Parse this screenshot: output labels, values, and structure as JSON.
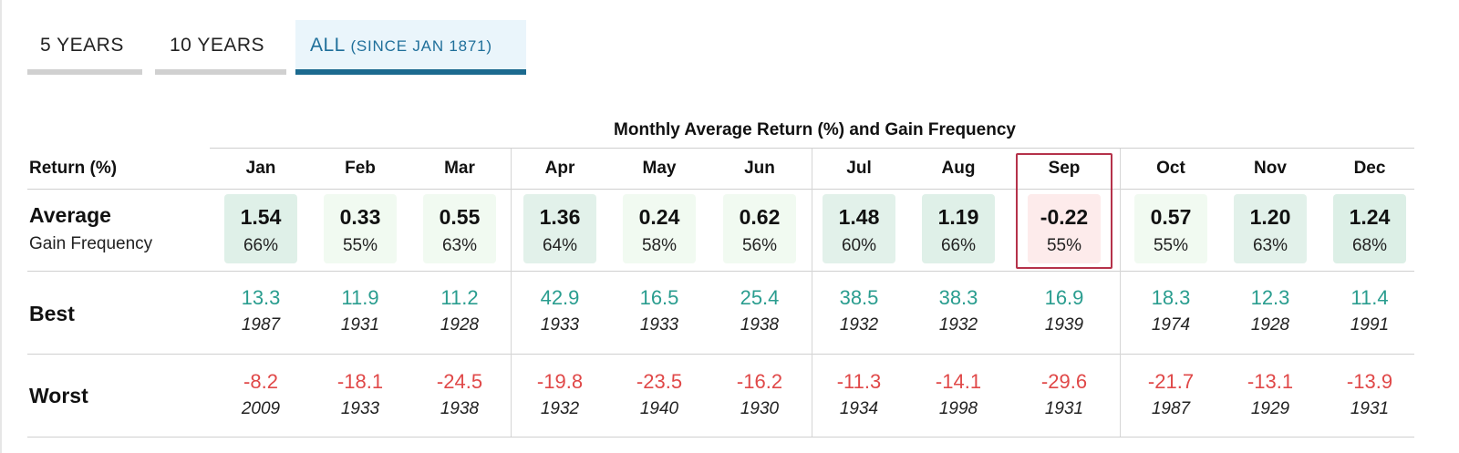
{
  "tabs": [
    {
      "label": "5 YEARS",
      "sub": "",
      "active": false
    },
    {
      "label": "10 YEARS",
      "sub": "",
      "active": false
    },
    {
      "label": "ALL",
      "sub": "(SINCE JAN 1871)",
      "active": true
    }
  ],
  "table": {
    "title": "Monthly Average Return (%) and Gain Frequency",
    "corner_label": "Return (%)",
    "row_labels": {
      "average": "Average",
      "gain_frequency": "Gain Frequency",
      "best": "Best",
      "worst": "Worst"
    },
    "highlighted_month": "Sep",
    "months": [
      {
        "name": "Jan",
        "avg": "1.54",
        "freq": "66%",
        "best": "13.3",
        "best_year": "1987",
        "worst": "-8.2",
        "worst_year": "2009"
      },
      {
        "name": "Feb",
        "avg": "0.33",
        "freq": "55%",
        "best": "11.9",
        "best_year": "1931",
        "worst": "-18.1",
        "worst_year": "1933"
      },
      {
        "name": "Mar",
        "avg": "0.55",
        "freq": "63%",
        "best": "11.2",
        "best_year": "1928",
        "worst": "-24.5",
        "worst_year": "1938"
      },
      {
        "name": "Apr",
        "avg": "1.36",
        "freq": "64%",
        "best": "42.9",
        "best_year": "1933",
        "worst": "-19.8",
        "worst_year": "1932"
      },
      {
        "name": "May",
        "avg": "0.24",
        "freq": "58%",
        "best": "16.5",
        "best_year": "1933",
        "worst": "-23.5",
        "worst_year": "1940"
      },
      {
        "name": "Jun",
        "avg": "0.62",
        "freq": "56%",
        "best": "25.4",
        "best_year": "1938",
        "worst": "-16.2",
        "worst_year": "1930"
      },
      {
        "name": "Jul",
        "avg": "1.48",
        "freq": "60%",
        "best": "38.5",
        "best_year": "1932",
        "worst": "-11.3",
        "worst_year": "1934"
      },
      {
        "name": "Aug",
        "avg": "1.19",
        "freq": "66%",
        "best": "38.3",
        "best_year": "1932",
        "worst": "-14.1",
        "worst_year": "1998"
      },
      {
        "name": "Sep",
        "avg": "-0.22",
        "freq": "55%",
        "best": "16.9",
        "best_year": "1939",
        "worst": "-29.6",
        "worst_year": "1931"
      },
      {
        "name": "Oct",
        "avg": "0.57",
        "freq": "55%",
        "best": "18.3",
        "best_year": "1974",
        "worst": "-21.7",
        "worst_year": "1987"
      },
      {
        "name": "Nov",
        "avg": "1.20",
        "freq": "63%",
        "best": "12.3",
        "best_year": "1928",
        "worst": "-13.1",
        "worst_year": "1929"
      },
      {
        "name": "Dec",
        "avg": "1.24",
        "freq": "68%",
        "best": "11.4",
        "best_year": "1991",
        "worst": "-13.9",
        "worst_year": "1931"
      }
    ]
  },
  "colors": {
    "positive": "#2a9d8f",
    "negative": "#e04848",
    "highlight_border": "#b5324a",
    "tab_active_bar": "#1c6a8f"
  }
}
